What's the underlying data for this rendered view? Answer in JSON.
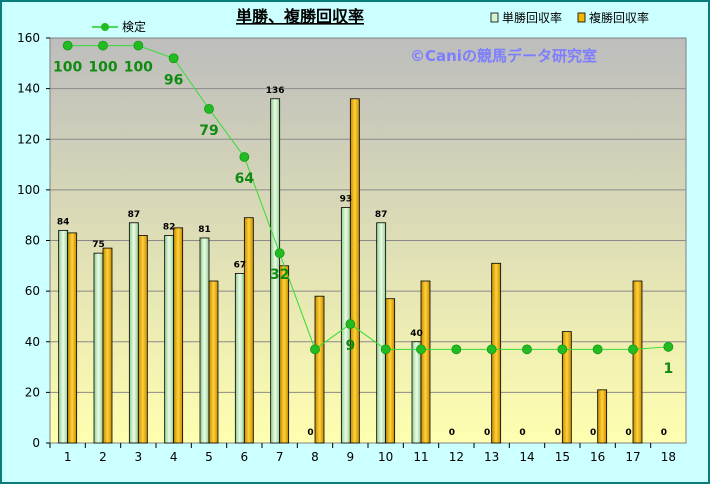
{
  "chart_data": {
    "type": "bar",
    "title": "単勝、複勝回収率",
    "watermark": "©Caniの競馬データ研究室",
    "categories": [
      "1",
      "2",
      "3",
      "4",
      "5",
      "6",
      "7",
      "8",
      "9",
      "10",
      "11",
      "12",
      "13",
      "14",
      "15",
      "16",
      "17",
      "18"
    ],
    "ylim": [
      0,
      160
    ],
    "yticks": [
      0,
      20,
      40,
      60,
      80,
      100,
      120,
      140,
      160
    ],
    "grid": true,
    "legend_position": "top",
    "series": [
      {
        "name": "単勝回収率",
        "kind": "bar",
        "color": "#d6f5cf",
        "values": [
          84,
          75,
          87,
          82,
          81,
          67,
          136,
          0,
          93,
          87,
          40,
          0,
          0,
          0,
          0,
          0,
          0,
          0
        ],
        "labels": [
          "84",
          "75",
          "87",
          "82",
          "81",
          "67",
          "136",
          "0",
          "93",
          "87",
          "40",
          "0",
          "0",
          "0",
          "0",
          "0",
          "0",
          "0"
        ]
      },
      {
        "name": "複勝回収率",
        "kind": "bar",
        "color": "#f2b800",
        "values": [
          83,
          77,
          82,
          85,
          64,
          89,
          70,
          58,
          136,
          57,
          64,
          0,
          71,
          0,
          44,
          21,
          64,
          0
        ]
      },
      {
        "name": "検定",
        "kind": "line",
        "color": "#22cc22",
        "values": [
          157,
          157,
          157,
          152,
          132,
          113,
          75,
          37,
          47,
          37,
          37,
          37,
          37,
          37,
          37,
          37,
          37,
          38
        ],
        "labels": [
          "100",
          "100",
          "100",
          "96",
          "79",
          "64",
          "32",
          "",
          "9",
          "",
          "",
          "",
          "",
          "",
          "",
          "",
          "",
          "1"
        ]
      }
    ]
  }
}
